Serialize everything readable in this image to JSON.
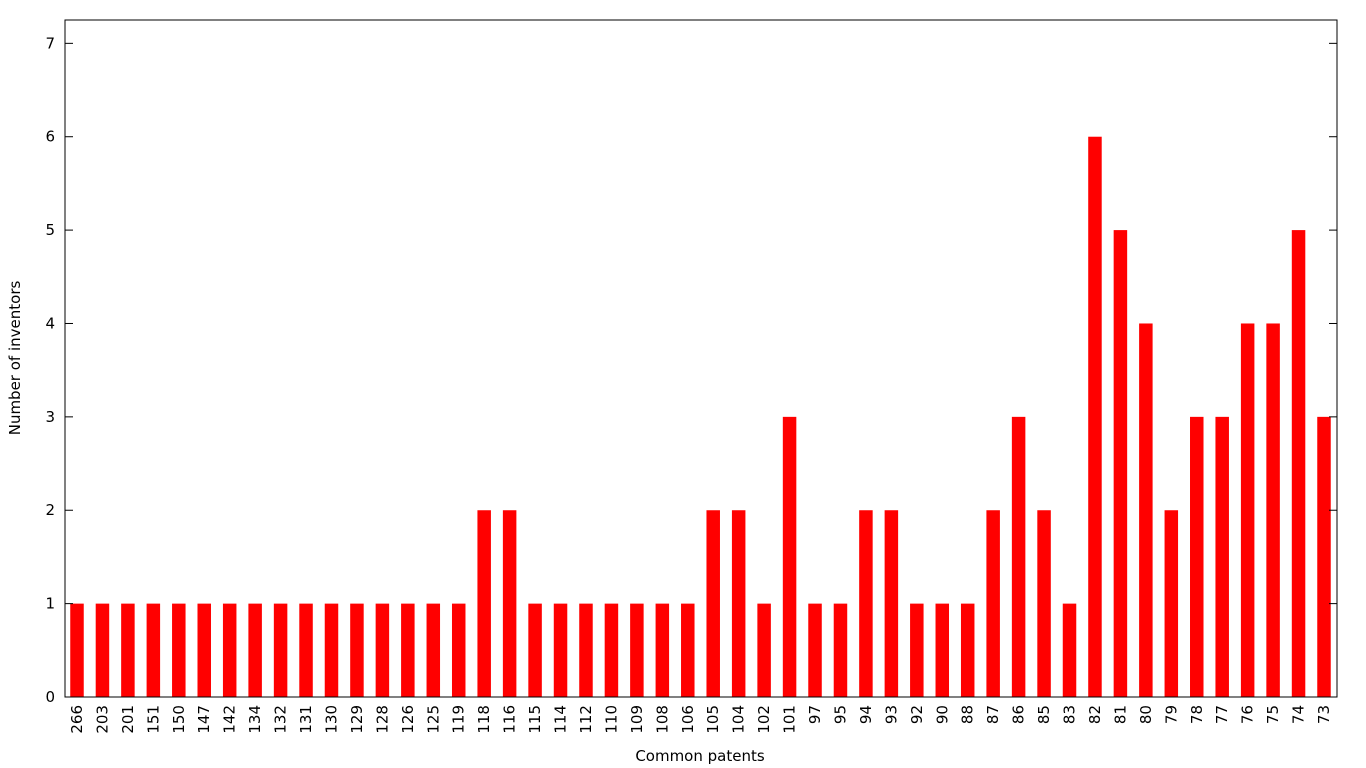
{
  "chart_data": {
    "type": "bar",
    "title": "",
    "xlabel": "Common patents",
    "ylabel": "Number of inventors",
    "ylim": [
      0,
      7.25
    ],
    "yticks": [
      0,
      1,
      2,
      3,
      4,
      5,
      6,
      7
    ],
    "grid": false,
    "legend": "none",
    "bar_color": "#ff0000",
    "categories": [
      "266",
      "203",
      "201",
      "151",
      "150",
      "147",
      "142",
      "134",
      "132",
      "131",
      "130",
      "129",
      "128",
      "126",
      "125",
      "119",
      "118",
      "116",
      "115",
      "114",
      "112",
      "110",
      "109",
      "108",
      "106",
      "105",
      "104",
      "102",
      "101",
      "97",
      "95",
      "94",
      "93",
      "92",
      "90",
      "88",
      "87",
      "86",
      "85",
      "83",
      "82",
      "81",
      "80",
      "79",
      "78",
      "77",
      "76",
      "75",
      "74",
      "73"
    ],
    "values": [
      1,
      1,
      1,
      1,
      1,
      1,
      1,
      1,
      1,
      1,
      1,
      1,
      1,
      1,
      1,
      1,
      2,
      2,
      1,
      1,
      1,
      1,
      1,
      1,
      1,
      2,
      2,
      1,
      3,
      1,
      1,
      2,
      2,
      1,
      1,
      1,
      2,
      3,
      2,
      1,
      6,
      5,
      4,
      2,
      3,
      3,
      4,
      4,
      5,
      3
    ]
  }
}
